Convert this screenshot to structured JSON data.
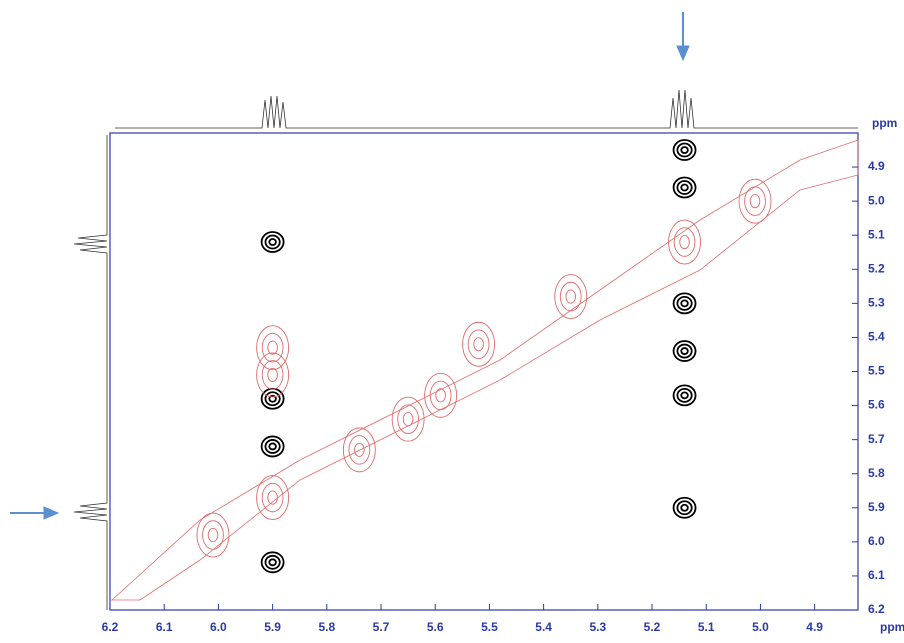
{
  "chart_data": {
    "type": "contour",
    "xlabel": "ppm",
    "ylabel": "ppm",
    "xlim": [
      6.2,
      4.82
    ],
    "ylim": [
      4.8,
      6.2
    ],
    "xticks": [
      6.2,
      6.1,
      {
        "value": 6,
        "label": "6.0"
      },
      5.9,
      5.8,
      5.7,
      5.6,
      5.5,
      5.4,
      5.3,
      5.2,
      5.1,
      {
        "value": 5,
        "label": "5.0"
      },
      4.9
    ],
    "yticks": [
      4.9,
      {
        "value": 5,
        "label": "5.0"
      },
      5.1,
      5.2,
      5.3,
      5.4,
      5.5,
      5.6,
      5.7,
      5.8,
      5.9,
      {
        "value": 6,
        "label": "6.0"
      },
      6.1,
      6.2
    ],
    "peaks": [
      {
        "color": "#000000",
        "x": [
          5.9,
          5.9,
          5.9,
          5.9,
          5.14,
          5.14,
          5.14,
          5.14,
          5.14,
          5.14
        ],
        "y": [
          5.12,
          5.58,
          5.72,
          6.06,
          4.85,
          4.96,
          5.3,
          5.44,
          5.57,
          5.9
        ]
      },
      {
        "color": "#e06b6b",
        "x": [
          5.9,
          5.74,
          5.65,
          5.59,
          5.52,
          5.35,
          5.14,
          5.01,
          6.01,
          5.9,
          5.9
        ],
        "y": [
          5.87,
          5.73,
          5.64,
          5.57,
          5.42,
          5.28,
          5.12,
          5.0,
          5.98,
          5.43,
          5.51
        ]
      }
    ]
  }
}
